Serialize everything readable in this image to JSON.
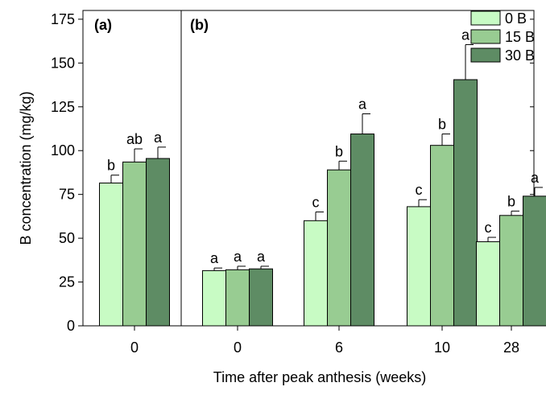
{
  "chart_data": {
    "type": "bar",
    "title": "",
    "xlabel": "Time after peak anthesis (weeks)",
    "ylabel": "B concentration (mg/kg)",
    "ylim": [
      0,
      180
    ],
    "yticks": [
      0,
      25,
      50,
      75,
      100,
      125,
      150,
      175
    ],
    "grid": false,
    "legend_position": "top-right",
    "panels": [
      {
        "label": "(a)",
        "categories": [
          "0"
        ]
      },
      {
        "label": "(b)",
        "categories": [
          "0",
          "6",
          "10",
          "28"
        ]
      }
    ],
    "categories": [
      "0",
      "0",
      "6",
      "10",
      "28"
    ],
    "series": [
      {
        "name": "0   B",
        "color": "#c8fbc4",
        "values": [
          81.5,
          31.5,
          60,
          68,
          48
        ],
        "errors": [
          4.5,
          1.5,
          5,
          4,
          2.5
        ],
        "letters": [
          "b",
          "a",
          "c",
          "c",
          "c"
        ]
      },
      {
        "name": "15 B",
        "color": "#98cc92",
        "values": [
          93.5,
          32,
          89,
          103,
          63
        ],
        "errors": [
          7.5,
          2,
          5,
          6.5,
          2.5
        ],
        "letters": [
          "ab",
          "a",
          "b",
          "b",
          "b"
        ]
      },
      {
        "name": "30 B",
        "color": "#5e8c64",
        "values": [
          95.5,
          32.5,
          109.5,
          140.5,
          74
        ],
        "errors": [
          6.5,
          1.5,
          11.5,
          20,
          5
        ],
        "letters": [
          "a",
          "a",
          "a",
          "a",
          "a"
        ]
      }
    ]
  }
}
